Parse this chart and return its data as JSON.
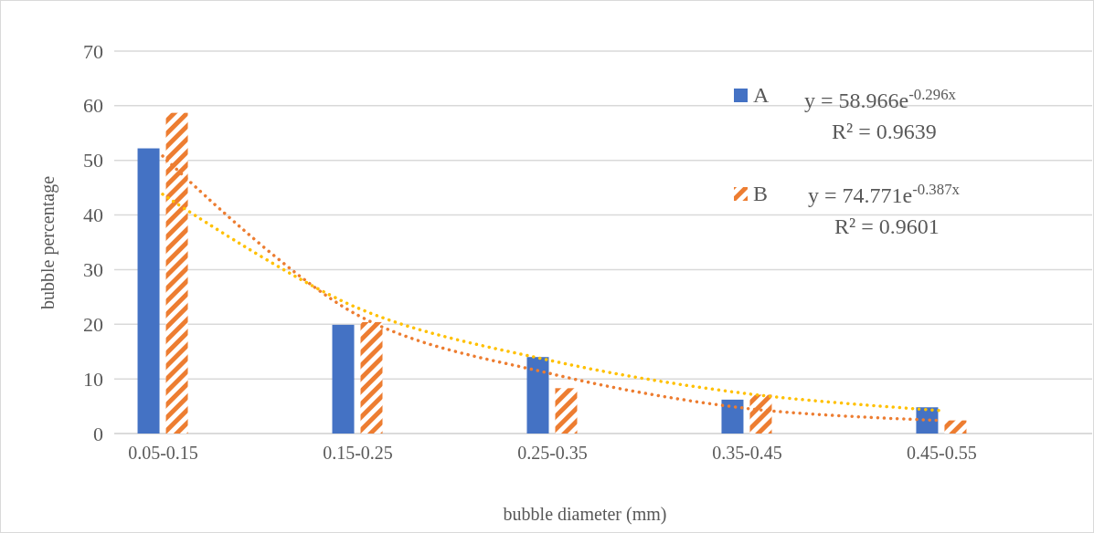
{
  "chart_data": {
    "type": "bar",
    "xlabel": "bubble diameter (mm)",
    "ylabel": "bubble percentage",
    "categories": [
      "0.05-0.15",
      "0.15-0.25",
      "0.25-0.35",
      "0.35-0.45",
      "0.45-0.55"
    ],
    "ylim": [
      0,
      70
    ],
    "yticks": [
      0,
      10,
      20,
      30,
      40,
      50,
      60,
      70
    ],
    "grid": "y",
    "legend": "top right",
    "series": [
      {
        "name": "A",
        "color": "#4472c4",
        "values": [
          52.2,
          19.9,
          14.0,
          6.2,
          4.8
        ]
      },
      {
        "name": "B",
        "color": "#ed7d31",
        "values": [
          58.7,
          20.4,
          8.3,
          7.1,
          2.4
        ]
      },
      {
        "type": "line",
        "color": "#ffc000",
        "line_style": "dotted",
        "marker": "none",
        "values": [
          43.8,
          23,
          13.3,
          7.3,
          4.2
        ]
      },
      {
        "type": "line",
        "color": "#ed7d31",
        "line_style": "dotted",
        "marker": "none",
        "values": [
          50.8,
          21.7,
          10.9,
          4.6,
          2.4
        ]
      }
    ],
    "annotations": [
      "y = 58.966e$^{-0.296x}$",
      "R² = 0.9639",
      "y = 74.771e$^{-0.387x}$",
      "R² = 0.9601"
    ]
  }
}
